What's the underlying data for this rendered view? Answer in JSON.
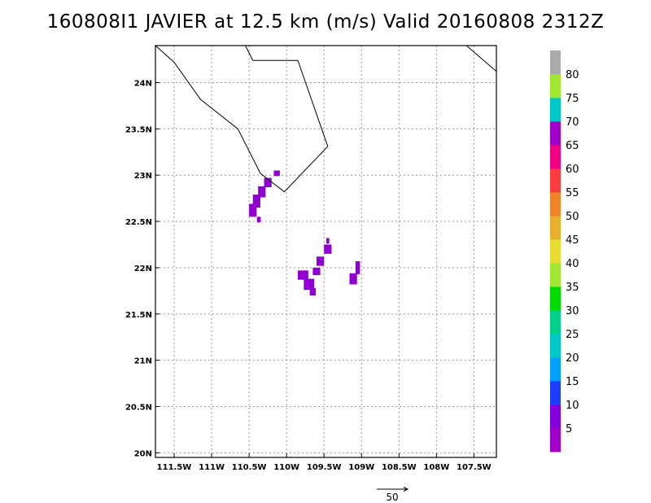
{
  "title": "160808I1 JAVIER at 12.5 km (m/s) Valid 20160808 2312Z",
  "map": {
    "lon_range": [
      -111.75,
      -107.2
    ],
    "lat_range": [
      19.95,
      24.4
    ],
    "grid_dotted": true,
    "x_ticks": [
      {
        "value": -111.5,
        "label": "111.5W"
      },
      {
        "value": -111.0,
        "label": "111W"
      },
      {
        "value": -110.5,
        "label": "110.5W"
      },
      {
        "value": -110.0,
        "label": "110W"
      },
      {
        "value": -109.5,
        "label": "109.5W"
      },
      {
        "value": -109.0,
        "label": "109W"
      },
      {
        "value": -108.5,
        "label": "108.5W"
      },
      {
        "value": -108.0,
        "label": "108W"
      },
      {
        "value": -107.5,
        "label": "107.5W"
      }
    ],
    "y_ticks": [
      {
        "value": 24.0,
        "label": "24N"
      },
      {
        "value": 23.5,
        "label": "23.5N"
      },
      {
        "value": 23.0,
        "label": "23N"
      },
      {
        "value": 22.5,
        "label": "22.5N"
      },
      {
        "value": 22.0,
        "label": "22N"
      },
      {
        "value": 21.5,
        "label": "21.5N"
      },
      {
        "value": 21.0,
        "label": "21N"
      },
      {
        "value": 20.5,
        "label": "20.5N"
      },
      {
        "value": 20.0,
        "label": "20N"
      }
    ],
    "coastlines": [
      [
        [
          -111.75,
          24.4
        ],
        [
          -111.5,
          24.22
        ],
        [
          -111.15,
          23.82
        ],
        [
          -110.65,
          23.5
        ],
        [
          -110.35,
          23.02
        ],
        [
          -110.03,
          22.82
        ],
        [
          -109.45,
          23.31
        ],
        [
          -109.85,
          24.24
        ],
        [
          -110.45,
          24.24
        ],
        [
          -110.55,
          24.4
        ]
      ],
      [
        [
          -107.6,
          24.4
        ],
        [
          -107.2,
          24.12
        ]
      ]
    ],
    "wind_cells": [
      {
        "lon": -110.45,
        "lat": 22.62,
        "w": 0.1,
        "h": 0.14
      },
      {
        "lon": -110.4,
        "lat": 22.72,
        "w": 0.1,
        "h": 0.14
      },
      {
        "lon": -110.33,
        "lat": 22.82,
        "w": 0.1,
        "h": 0.12
      },
      {
        "lon": -110.25,
        "lat": 22.92,
        "w": 0.1,
        "h": 0.1
      },
      {
        "lon": -110.13,
        "lat": 23.02,
        "w": 0.08,
        "h": 0.06
      },
      {
        "lon": -110.37,
        "lat": 22.52,
        "w": 0.05,
        "h": 0.06
      },
      {
        "lon": -109.78,
        "lat": 21.92,
        "w": 0.14,
        "h": 0.1
      },
      {
        "lon": -109.7,
        "lat": 21.82,
        "w": 0.14,
        "h": 0.12
      },
      {
        "lon": -109.65,
        "lat": 21.74,
        "w": 0.08,
        "h": 0.08
      },
      {
        "lon": -109.6,
        "lat": 21.96,
        "w": 0.1,
        "h": 0.08
      },
      {
        "lon": -109.55,
        "lat": 22.07,
        "w": 0.1,
        "h": 0.1
      },
      {
        "lon": -109.45,
        "lat": 22.2,
        "w": 0.1,
        "h": 0.1
      },
      {
        "lon": -109.45,
        "lat": 22.29,
        "w": 0.04,
        "h": 0.06
      },
      {
        "lon": -109.11,
        "lat": 21.88,
        "w": 0.1,
        "h": 0.12
      },
      {
        "lon": -109.05,
        "lat": 22.0,
        "w": 0.06,
        "h": 0.14
      }
    ],
    "wind_color": "#9000d0"
  },
  "colorbar": {
    "labels": [
      "5",
      "10",
      "15",
      "20",
      "25",
      "30",
      "35",
      "40",
      "45",
      "50",
      "55",
      "60",
      "65",
      "70",
      "75",
      "80"
    ],
    "colors": [
      "#a000c8",
      "#8200dc",
      "#1e3cff",
      "#00a0ff",
      "#00c8c8",
      "#00d28c",
      "#00dc00",
      "#a0e632",
      "#e6dc32",
      "#e6af2d",
      "#f08228",
      "#fa3c3c",
      "#f00082",
      "#a000c8",
      "#00c8c8",
      "#a0e632",
      "#aaaaaa"
    ]
  },
  "vector_reference": {
    "label": "50"
  }
}
